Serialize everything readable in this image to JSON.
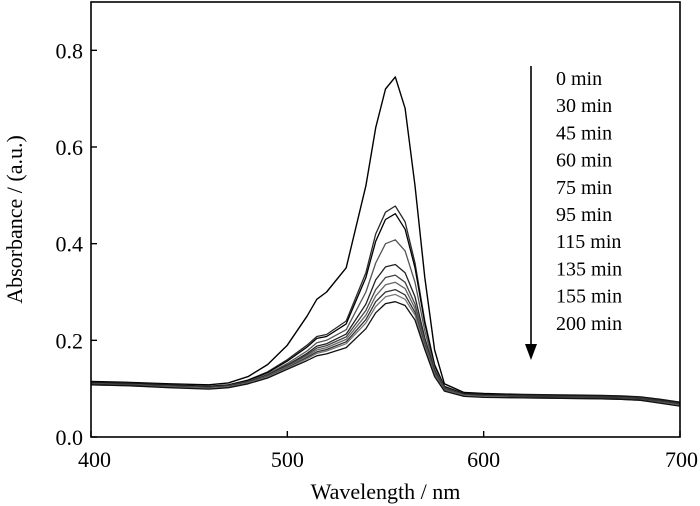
{
  "chart_data": {
    "type": "line",
    "xlabel": "Wavelength / nm",
    "ylabel": "Absorbance / (a.u.)",
    "xlim": [
      400,
      700
    ],
    "ylim": [
      0.0,
      0.9
    ],
    "xticks": [
      400,
      500,
      600,
      700
    ],
    "xtick_labels": [
      "400",
      "500",
      "600",
      "700"
    ],
    "yticks": [
      0.0,
      0.2,
      0.4,
      0.6,
      0.8
    ],
    "ytick_labels": [
      "0.0",
      "0.2",
      "0.4",
      "0.6",
      "0.8"
    ],
    "grid": false,
    "legend_position": "top-right",
    "legend_arrow": "down",
    "x": [
      400,
      420,
      440,
      460,
      470,
      480,
      490,
      500,
      510,
      515,
      520,
      530,
      540,
      545,
      550,
      555,
      560,
      565,
      570,
      575,
      580,
      590,
      600,
      620,
      640,
      660,
      670,
      680,
      690,
      700
    ],
    "series": [
      {
        "name": "0 min",
        "color": "#000000",
        "values": [
          0.115,
          0.113,
          0.11,
          0.108,
          0.112,
          0.125,
          0.15,
          0.19,
          0.25,
          0.285,
          0.3,
          0.35,
          0.52,
          0.64,
          0.72,
          0.745,
          0.68,
          0.52,
          0.33,
          0.18,
          0.11,
          0.092,
          0.09,
          0.088,
          0.087,
          0.086,
          0.085,
          0.083,
          0.078,
          0.072
        ]
      },
      {
        "name": "30 min",
        "color": "#2a2a2a",
        "values": [
          0.113,
          0.111,
          0.108,
          0.105,
          0.108,
          0.118,
          0.135,
          0.16,
          0.19,
          0.208,
          0.212,
          0.24,
          0.34,
          0.42,
          0.465,
          0.478,
          0.445,
          0.36,
          0.24,
          0.15,
          0.105,
          0.09,
          0.088,
          0.087,
          0.086,
          0.085,
          0.084,
          0.082,
          0.077,
          0.071
        ]
      },
      {
        "name": "45 min",
        "color": "#000000",
        "values": [
          0.112,
          0.11,
          0.107,
          0.104,
          0.107,
          0.117,
          0.133,
          0.157,
          0.186,
          0.204,
          0.208,
          0.234,
          0.33,
          0.405,
          0.45,
          0.462,
          0.43,
          0.35,
          0.235,
          0.148,
          0.104,
          0.089,
          0.087,
          0.086,
          0.085,
          0.084,
          0.083,
          0.081,
          0.076,
          0.07
        ]
      },
      {
        "name": "60 min",
        "color": "#555555",
        "values": [
          0.111,
          0.109,
          0.106,
          0.103,
          0.106,
          0.115,
          0.13,
          0.152,
          0.178,
          0.195,
          0.2,
          0.222,
          0.3,
          0.36,
          0.4,
          0.408,
          0.385,
          0.32,
          0.22,
          0.142,
          0.102,
          0.088,
          0.086,
          0.085,
          0.084,
          0.083,
          0.082,
          0.08,
          0.075,
          0.069
        ]
      },
      {
        "name": "75 min",
        "color": "#222222",
        "values": [
          0.11,
          0.108,
          0.105,
          0.102,
          0.105,
          0.114,
          0.128,
          0.149,
          0.173,
          0.188,
          0.193,
          0.213,
          0.275,
          0.325,
          0.352,
          0.357,
          0.34,
          0.29,
          0.205,
          0.137,
          0.1,
          0.087,
          0.085,
          0.084,
          0.083,
          0.082,
          0.081,
          0.079,
          0.074,
          0.068
        ]
      },
      {
        "name": "95 min",
        "color": "#444444",
        "values": [
          0.11,
          0.108,
          0.105,
          0.101,
          0.104,
          0.113,
          0.127,
          0.147,
          0.17,
          0.184,
          0.189,
          0.207,
          0.262,
          0.305,
          0.33,
          0.335,
          0.32,
          0.275,
          0.198,
          0.134,
          0.099,
          0.086,
          0.084,
          0.083,
          0.082,
          0.081,
          0.08,
          0.078,
          0.073,
          0.067
        ]
      },
      {
        "name": "115 min",
        "color": "#666666",
        "values": [
          0.109,
          0.107,
          0.104,
          0.101,
          0.104,
          0.112,
          0.126,
          0.145,
          0.167,
          0.18,
          0.185,
          0.202,
          0.252,
          0.292,
          0.315,
          0.32,
          0.307,
          0.266,
          0.193,
          0.132,
          0.098,
          0.086,
          0.084,
          0.082,
          0.081,
          0.08,
          0.079,
          0.077,
          0.072,
          0.066
        ]
      },
      {
        "name": "135 min",
        "color": "#333333",
        "values": [
          0.109,
          0.107,
          0.104,
          0.1,
          0.103,
          0.111,
          0.125,
          0.143,
          0.164,
          0.176,
          0.181,
          0.197,
          0.243,
          0.28,
          0.3,
          0.305,
          0.294,
          0.258,
          0.189,
          0.13,
          0.097,
          0.085,
          0.083,
          0.082,
          0.081,
          0.08,
          0.079,
          0.077,
          0.072,
          0.065
        ]
      },
      {
        "name": "155 min",
        "color": "#777777",
        "values": [
          0.108,
          0.106,
          0.103,
          0.1,
          0.103,
          0.111,
          0.124,
          0.142,
          0.162,
          0.173,
          0.178,
          0.193,
          0.236,
          0.27,
          0.29,
          0.295,
          0.285,
          0.252,
          0.186,
          0.128,
          0.096,
          0.085,
          0.083,
          0.081,
          0.08,
          0.079,
          0.078,
          0.076,
          0.071,
          0.065
        ]
      },
      {
        "name": "200 min",
        "color": "#111111",
        "values": [
          0.108,
          0.106,
          0.102,
          0.099,
          0.102,
          0.11,
          0.122,
          0.14,
          0.158,
          0.168,
          0.172,
          0.185,
          0.224,
          0.257,
          0.276,
          0.28,
          0.272,
          0.242,
          0.181,
          0.125,
          0.095,
          0.084,
          0.082,
          0.081,
          0.08,
          0.079,
          0.078,
          0.076,
          0.07,
          0.064
        ]
      }
    ]
  }
}
